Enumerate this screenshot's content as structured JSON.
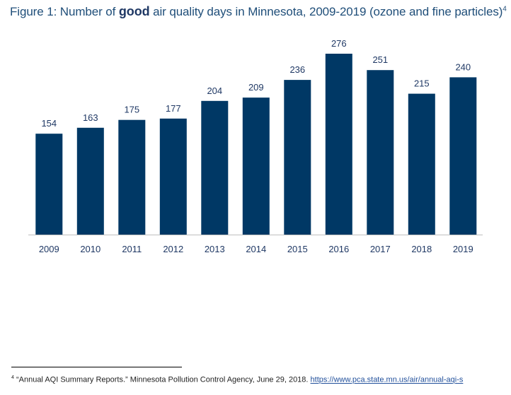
{
  "title": {
    "prefix": "Figure 1: Number of ",
    "emphasis": "good",
    "suffix": " air quality days in Minnesota, 2009-2019 (ozone and fine particles)",
    "note_ref": "4"
  },
  "footnote": {
    "marker": "4",
    "text": " “Annual AQI Summary Reports.” Minnesota Pollution Control Agency, June 29, 2018. ",
    "link": "https://www.pca.state.mn.us/air/annual-aqi-s"
  },
  "colors": {
    "bar": "#003865",
    "axis": "#BFBFBF",
    "title": "#1F4E79"
  },
  "chart_data": {
    "type": "bar",
    "categories": [
      "2009",
      "2010",
      "2011",
      "2012",
      "2013",
      "2014",
      "2015",
      "2016",
      "2017",
      "2018",
      "2019"
    ],
    "values": [
      154,
      163,
      175,
      177,
      204,
      209,
      236,
      276,
      251,
      215,
      240
    ],
    "ylim": [
      0,
      276
    ],
    "grid": false,
    "legend": "none",
    "data_labels": true
  }
}
